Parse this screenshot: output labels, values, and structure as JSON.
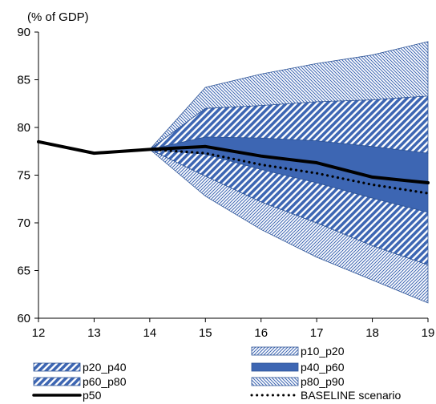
{
  "chart_data": {
    "type": "area",
    "ylabel": "(% of GDP)",
    "x": [
      12,
      13,
      14,
      15,
      16,
      17,
      18,
      19
    ],
    "xlim": [
      12,
      19
    ],
    "ylim": [
      60,
      90
    ],
    "yticks": [
      60,
      65,
      70,
      75,
      80,
      85,
      90
    ],
    "grid": false,
    "legend_position": "bottom",
    "colors": {
      "band": "#3d66b3",
      "line": "#000000",
      "border": "#2f5597"
    },
    "series": [
      {
        "name": "p10_p20",
        "kind": "band",
        "pattern": "diag-thin-fwd",
        "lower": [
          null,
          null,
          77.7,
          72.8,
          69.3,
          66.4,
          64.0,
          61.6
        ],
        "upper": [
          null,
          null,
          77.7,
          74.9,
          72.2,
          70.0,
          67.6,
          65.6
        ]
      },
      {
        "name": "p20_p40",
        "kind": "band",
        "pattern": "diag-thick-back",
        "lower": [
          null,
          null,
          77.7,
          74.9,
          72.2,
          70.0,
          67.6,
          65.6
        ],
        "upper": [
          null,
          null,
          77.7,
          77.2,
          75.6,
          74.2,
          72.6,
          71.1
        ]
      },
      {
        "name": "p40_p60",
        "kind": "band",
        "pattern": "solid",
        "lower": [
          null,
          null,
          77.7,
          77.2,
          75.6,
          74.2,
          72.6,
          71.1
        ],
        "upper": [
          null,
          null,
          77.7,
          79.0,
          78.9,
          78.6,
          78.0,
          77.3
        ]
      },
      {
        "name": "p60_p80",
        "kind": "band",
        "pattern": "diag-thick-back",
        "lower": [
          null,
          null,
          77.7,
          79.0,
          78.9,
          78.6,
          78.0,
          77.3
        ],
        "upper": [
          null,
          null,
          77.7,
          82.0,
          82.3,
          82.7,
          82.9,
          83.3
        ]
      },
      {
        "name": "p80_p90",
        "kind": "band",
        "pattern": "diag-thin-back",
        "lower": [
          null,
          null,
          77.7,
          82.0,
          82.3,
          82.7,
          82.9,
          83.3
        ],
        "upper": [
          null,
          null,
          77.7,
          84.2,
          85.6,
          86.7,
          87.6,
          89.0
        ]
      },
      {
        "name": "p50",
        "kind": "line",
        "style": "solid",
        "values": [
          78.5,
          77.3,
          77.7,
          78.0,
          77.0,
          76.3,
          74.8,
          74.2
        ]
      },
      {
        "name": "BASELINE scenario",
        "kind": "line",
        "style": "dotted",
        "values": [
          null,
          null,
          77.7,
          77.3,
          76.1,
          75.2,
          74.0,
          73.1
        ]
      }
    ],
    "legend": [
      {
        "key": "p10_p20",
        "label": "p10_p20"
      },
      {
        "key": "p20_p40",
        "label": "p20_p40"
      },
      {
        "key": "p40_p60",
        "label": "p40_p60"
      },
      {
        "key": "p60_p80",
        "label": "p60_p80"
      },
      {
        "key": "p80_p90",
        "label": "p80_p90"
      },
      {
        "key": "p50",
        "label": "p50"
      },
      {
        "key": "baseline",
        "label": "BASELINE scenario"
      }
    ]
  }
}
